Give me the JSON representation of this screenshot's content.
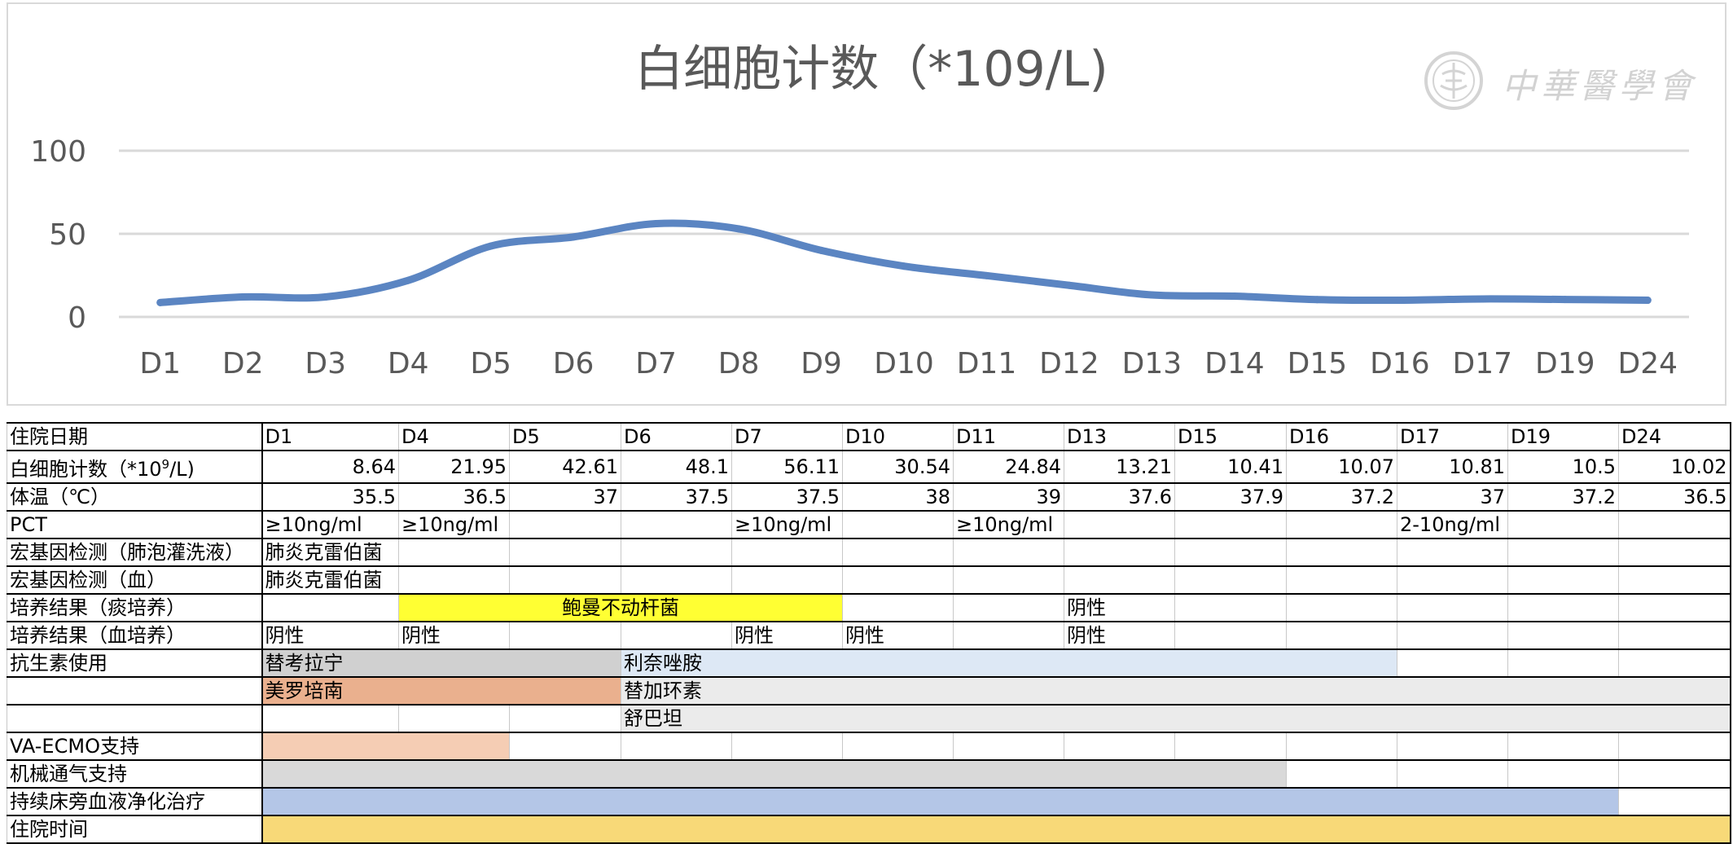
{
  "chart_data": {
    "type": "line",
    "title": "白细胞计数（*109/L)",
    "categories": [
      "D1",
      "D2",
      "D3",
      "D4",
      "D5",
      "D6",
      "D7",
      "D8",
      "D9",
      "D10",
      "D11",
      "D12",
      "D13",
      "D14",
      "D15",
      "D16",
      "D17",
      "D19",
      "D24"
    ],
    "series": [
      {
        "values": [
          8.64,
          12,
          12,
          21.95,
          42.61,
          48.1,
          56.11,
          53,
          40,
          30.54,
          24.84,
          19,
          13.21,
          12.5,
          10.41,
          10.07,
          10.81,
          10.5,
          10.02
        ]
      }
    ],
    "yticks": [
      0,
      50,
      100
    ],
    "ylim": [
      0,
      100
    ],
    "grid": true,
    "line_color": "#5b85c2",
    "grid_color": "#d9d9d9"
  },
  "watermark": {
    "text": "中華醫學會"
  },
  "table": {
    "header": {
      "label": "住院日期",
      "days": [
        "D1",
        "D4",
        "D5",
        "D6",
        "D7",
        "D10",
        "D11",
        "D13",
        "D15",
        "D16",
        "D17",
        "D19",
        "D24"
      ]
    },
    "wbc": {
      "label_prefix": "白细胞计数（*10",
      "label_sup": "9",
      "label_suffix": "/L)",
      "values": [
        "8.64",
        "21.95",
        "42.61",
        "48.1",
        "56.11",
        "30.54",
        "24.84",
        "13.21",
        "10.41",
        "10.07",
        "10.81",
        "10.5",
        "10.02"
      ]
    },
    "temp": {
      "label": "体温（℃）",
      "values": [
        "35.5",
        "36.5",
        "37",
        "37.5",
        "37.5",
        "38",
        "39",
        "37.6",
        "37.9",
        "37.2",
        "37",
        "37.2",
        "36.5"
      ]
    },
    "pct": {
      "label": "PCT",
      "d1": "≥10ng/ml",
      "d4": "≥10ng/ml",
      "d7": "≥10ng/ml",
      "d11": "≥10ng/ml",
      "d17": "2-10ng/ml"
    },
    "ngs_balf": {
      "label": "宏基因检测（肺泡灌洗液）",
      "d1": "肺炎克雷伯菌"
    },
    "ngs_blood": {
      "label": "宏基因检测（血）",
      "d1": "肺炎克雷伯菌"
    },
    "sputum": {
      "label": "培养结果（痰培养）",
      "organism": "鲍曼不动杆菌",
      "d13": "阴性",
      "highlight": "#ffff33"
    },
    "blood_culture": {
      "label": "培养结果（血培养）",
      "d1": "阴性",
      "d4": "阴性",
      "d7": "阴性",
      "d10": "阴性",
      "d13": "阴性"
    },
    "antibiotics": {
      "label": "抗生素使用",
      "drug1": "替考拉宁",
      "drug2": "利奈唑胺",
      "drug3": "美罗培南",
      "drug4": "替加环素",
      "drug5": "舒巴坦"
    },
    "ecmo": {
      "label": "VA-ECMO支持"
    },
    "ventilation": {
      "label": "机械通气支持"
    },
    "crrt": {
      "label": "持续床旁血液净化治疗"
    },
    "stay": {
      "label": "住院时间"
    },
    "colors": {
      "gray": "#d0d0d0",
      "light_blue": "#dde8f5",
      "orange": "#eab08e",
      "light_gray": "#ebebeb",
      "peach": "#f5cdb4",
      "mid_gray": "#d9d9d9",
      "blue": "#b4c6e7",
      "gold": "#f8d978"
    }
  }
}
